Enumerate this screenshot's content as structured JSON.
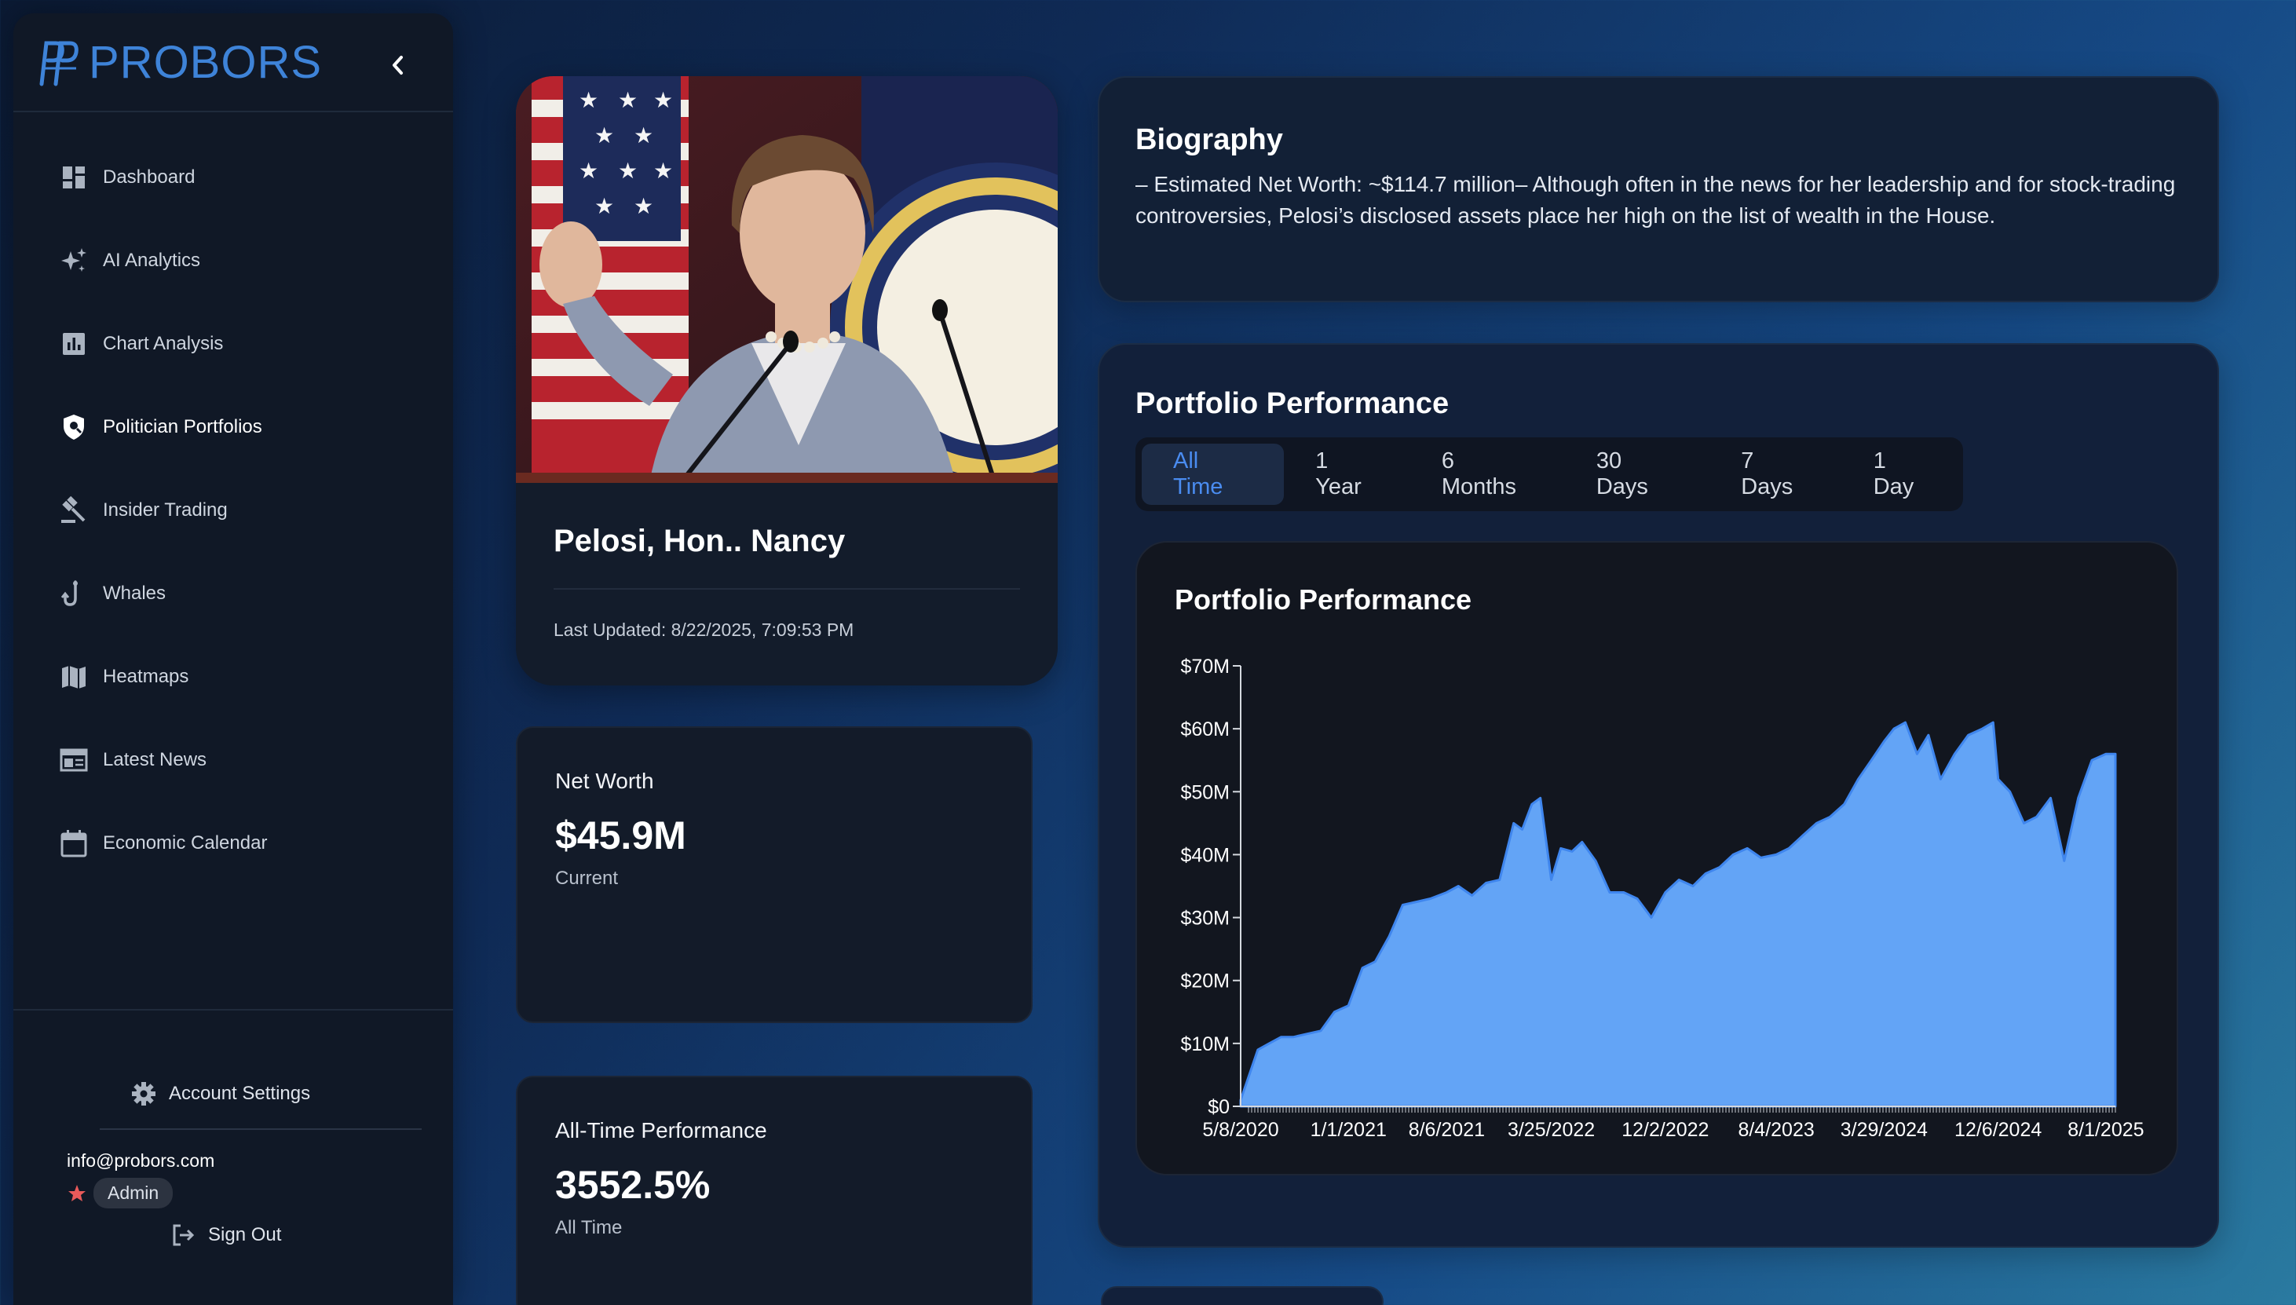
{
  "brand": {
    "name": "PROBORS"
  },
  "sidebar": {
    "items": [
      {
        "label": "Dashboard",
        "icon": "dashboard-icon"
      },
      {
        "label": "AI Analytics",
        "icon": "sparkle-icon"
      },
      {
        "label": "Chart Analysis",
        "icon": "bar-chart-icon"
      },
      {
        "label": "Politician Portfolios",
        "icon": "shield-person-icon",
        "active": true
      },
      {
        "label": "Insider Trading",
        "icon": "gavel-icon"
      },
      {
        "label": "Whales",
        "icon": "hook-icon"
      },
      {
        "label": "Heatmaps",
        "icon": "map-icon"
      },
      {
        "label": "Latest News",
        "icon": "newspaper-icon"
      },
      {
        "label": "Economic Calendar",
        "icon": "calendar-icon"
      }
    ],
    "account_settings": "Account Settings",
    "user_email": "info@probors.com",
    "role": "Admin",
    "sign_out": "Sign Out"
  },
  "profile": {
    "name": "Pelosi, Hon.. Nancy",
    "last_updated": "Last Updated: 8/22/2025, 7:09:53 PM"
  },
  "net_worth": {
    "title": "Net Worth",
    "value": "$45.9M",
    "sub": "Current"
  },
  "all_time": {
    "title": "All-Time Performance",
    "value": "3552.5%",
    "sub": "All Time"
  },
  "biography": {
    "title": "Biography",
    "text": "– Estimated Net Worth: ~$114.7 million– Although often in the news for her leadership and for stock-trading controversies, Pelosi’s disclosed assets place her high on the list of wealth in the House."
  },
  "portfolio": {
    "title": "Portfolio Performance",
    "tabs": [
      "All Time",
      "1 Year",
      "6 Months",
      "30 Days",
      "7 Days",
      "1 Day"
    ],
    "active_tab": "All Time",
    "chart_title": "Portfolio Performance"
  },
  "colors": {
    "accent": "#4a8cf0",
    "area_fill": "#63a4f6",
    "area_stroke": "#3f86ee",
    "brand": "#3e83d8"
  },
  "chart_data": {
    "type": "area",
    "title": "Portfolio Performance",
    "xlabel": "",
    "ylabel": "",
    "ylim": [
      0,
      70
    ],
    "y_unit": "M USD",
    "y_ticks": [
      "$0",
      "$10M",
      "$20M",
      "$30M",
      "$40M",
      "$50M",
      "$60M",
      "$70M"
    ],
    "x_ticks": [
      "5/8/2020",
      "1/1/2021",
      "8/6/2021",
      "3/25/2022",
      "12/2/2022",
      "8/4/2023",
      "3/29/2024",
      "12/6/2024",
      "8/1/2025"
    ],
    "x_range": [
      "5/8/2020",
      "8/22/2025"
    ],
    "grid": false,
    "series": [
      {
        "x": [
          "5/8/2020",
          "6/15/2020",
          "7/10/2020",
          "8/5/2020",
          "9/1/2020",
          "10/1/2020",
          "11/1/2020",
          "12/1/2020",
          "1/1/2021",
          "2/1/2021",
          "3/1/2021",
          "4/1/2021",
          "5/1/2021",
          "6/1/2021",
          "7/1/2021",
          "8/6/2021",
          "9/1/2021",
          "10/1/2021",
          "11/1/2021",
          "12/1/2021",
          "1/1/2022",
          "1/20/2022",
          "2/10/2022",
          "3/1/2022",
          "3/25/2022",
          "4/15/2022",
          "5/10/2022",
          "6/1/2022",
          "7/1/2022",
          "8/1/2022",
          "9/1/2022",
          "10/1/2022",
          "11/1/2022",
          "12/2/2022",
          "1/1/2023",
          "2/1/2023",
          "3/1/2023",
          "4/1/2023",
          "5/1/2023",
          "6/1/2023",
          "7/1/2023",
          "8/4/2023",
          "9/1/2023",
          "10/1/2023",
          "11/1/2023",
          "12/1/2023",
          "1/1/2024",
          "2/1/2024",
          "3/1/2024",
          "3/29/2024",
          "4/20/2024",
          "5/15/2024",
          "6/10/2024",
          "7/5/2024",
          "8/1/2024",
          "9/1/2024",
          "10/1/2024",
          "11/1/2024",
          "11/25/2024",
          "12/6/2024",
          "1/1/2025",
          "2/1/2025",
          "3/1/2025",
          "4/1/2025",
          "5/1/2025",
          "6/1/2025",
          "7/1/2025",
          "8/1/2025",
          "8/22/2025"
        ],
        "values": [
          1,
          9,
          10,
          11,
          11,
          11.5,
          12,
          15,
          16,
          22,
          23,
          27,
          32,
          32.5,
          33,
          34,
          35,
          33.5,
          35.5,
          36,
          45,
          44,
          48,
          49,
          36,
          41,
          40.5,
          42,
          39,
          34,
          34,
          33,
          30,
          34,
          36,
          35,
          37,
          38,
          40,
          41,
          39.5,
          40,
          41,
          43,
          45,
          46,
          48,
          52,
          55,
          58,
          60,
          61,
          56,
          59,
          52,
          56,
          59,
          60,
          61,
          52,
          50,
          45,
          46,
          49,
          39,
          49,
          55,
          56,
          56
        ]
      }
    ]
  }
}
